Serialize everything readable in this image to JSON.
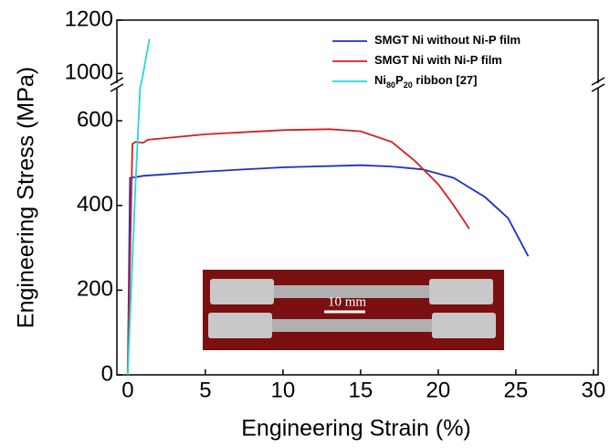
{
  "chart_data": {
    "type": "line",
    "x_label": "Engineering Strain (%)",
    "y_label": "Engineering Stress (MPa)",
    "xlim": [
      -0.7,
      30.3
    ],
    "xticks": [
      0,
      5,
      10,
      15,
      20,
      25,
      30
    ],
    "ylim": [
      0,
      1200
    ],
    "yticks": [
      0,
      200,
      400,
      600,
      1000,
      1200
    ],
    "ybreak": [
      680,
      960
    ],
    "legend": "upper right",
    "inset_label": "10 mm",
    "series": [
      {
        "name": "SMGT Ni without Ni-P film",
        "color": "#1f2fc8",
        "x": [
          0,
          0.15,
          1,
          5,
          10,
          15,
          17,
          19,
          21,
          23,
          24.5,
          25.8
        ],
        "values": [
          0,
          465,
          470,
          480,
          490,
          495,
          492,
          485,
          465,
          420,
          370,
          280
        ]
      },
      {
        "name": "SMGT Ni with Ni-P film",
        "color": "#d42020",
        "x": [
          0,
          0.3,
          0.5,
          1,
          1.3,
          5,
          10,
          13,
          15,
          17,
          18.5,
          20,
          21,
          22
        ],
        "values": [
          0,
          545,
          550,
          548,
          555,
          568,
          578,
          580,
          575,
          550,
          505,
          450,
          400,
          345
        ]
      },
      {
        "name": "Ni80P20 ribbon [27]",
        "color": "#22d8e0",
        "x": [
          0,
          0.5,
          0.8,
          0.9,
          1.4
        ],
        "values": [
          0,
          450,
          680,
          970,
          1130
        ]
      }
    ]
  }
}
